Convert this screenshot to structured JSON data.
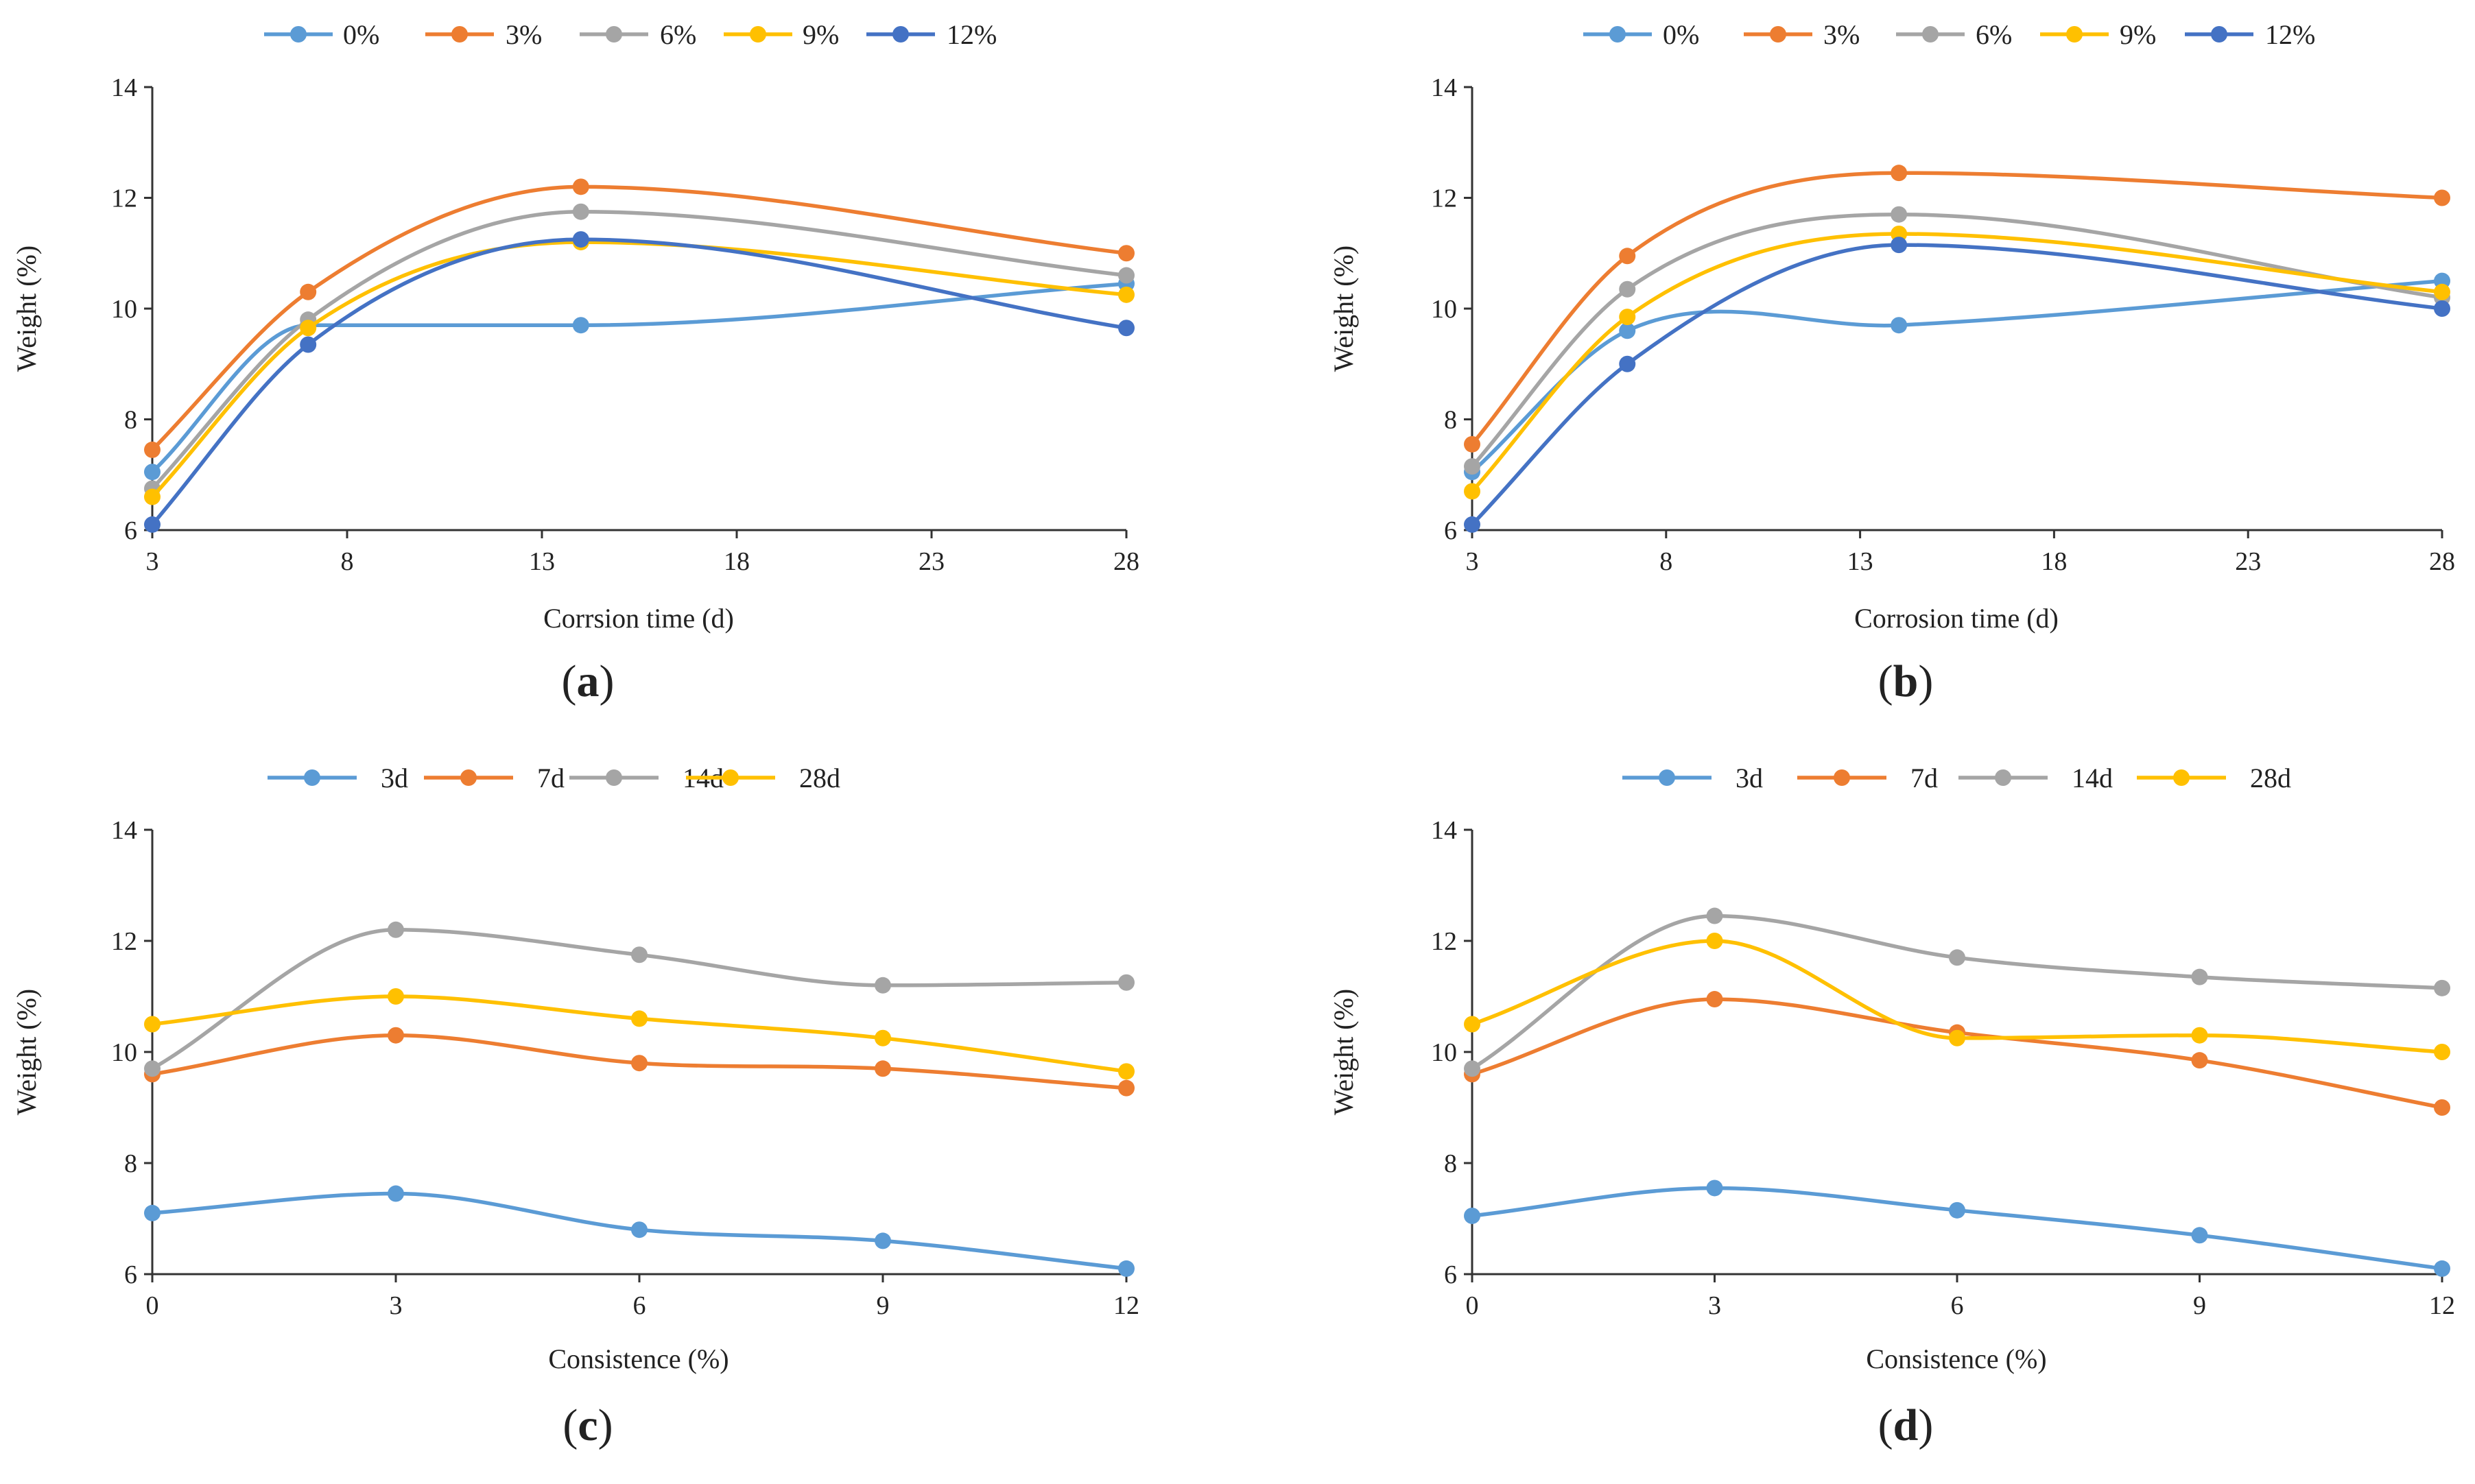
{
  "chart_data": [
    {
      "panel": "a",
      "type": "line",
      "panel_label": {
        "open": "(",
        "letter": "a",
        "close": ")"
      },
      "xlabel": "Corrsion time (d)",
      "ylabel": "Weight (%)",
      "xlim": [
        3,
        28
      ],
      "ylim": [
        6,
        14
      ],
      "xticks": [
        "3",
        "8",
        "13",
        "18",
        "23",
        "28"
      ],
      "yticks": [
        "6",
        "8",
        "10",
        "12",
        "14"
      ],
      "x": [
        3,
        7,
        14,
        28
      ],
      "series": [
        {
          "name": "0%",
          "color": "#5B9BD5",
          "values": [
            7.05,
            9.7,
            9.7,
            10.45
          ]
        },
        {
          "name": "3%",
          "color": "#ED7D31",
          "values": [
            7.45,
            10.3,
            12.2,
            11.0
          ]
        },
        {
          "name": "6%",
          "color": "#A5A5A5",
          "values": [
            6.75,
            9.8,
            11.75,
            10.6
          ]
        },
        {
          "name": "9%",
          "color": "#FFC000",
          "values": [
            6.6,
            9.65,
            11.2,
            10.25
          ]
        },
        {
          "name": "12%",
          "color": "#4472C4",
          "values": [
            6.1,
            9.35,
            11.25,
            9.65
          ]
        }
      ]
    },
    {
      "panel": "b",
      "type": "line",
      "panel_label": {
        "open": "(",
        "letter": "b",
        "close": ")"
      },
      "xlabel": "Corrosion time (d)",
      "ylabel": "Weight (%)",
      "xlim": [
        3,
        28
      ],
      "ylim": [
        6,
        14
      ],
      "xticks": [
        "3",
        "8",
        "13",
        "18",
        "23",
        "28"
      ],
      "yticks": [
        "6",
        "8",
        "10",
        "12",
        "14"
      ],
      "x": [
        3,
        7,
        14,
        28
      ],
      "series": [
        {
          "name": "0%",
          "color": "#5B9BD5",
          "values": [
            7.05,
            9.6,
            9.7,
            10.5
          ]
        },
        {
          "name": "3%",
          "color": "#ED7D31",
          "values": [
            7.55,
            10.95,
            12.45,
            12.0
          ]
        },
        {
          "name": "6%",
          "color": "#A5A5A5",
          "values": [
            7.15,
            10.35,
            11.7,
            10.2
          ]
        },
        {
          "name": "9%",
          "color": "#FFC000",
          "values": [
            6.7,
            9.85,
            11.35,
            10.3
          ]
        },
        {
          "name": "12%",
          "color": "#4472C4",
          "values": [
            6.1,
            9.0,
            11.15,
            10.0
          ]
        }
      ]
    },
    {
      "panel": "c",
      "type": "line",
      "panel_label": {
        "open": "(",
        "letter": "c",
        "close": ")"
      },
      "xlabel": "Consistence (%)",
      "ylabel": "Weight (%)",
      "xlim": [
        0,
        12
      ],
      "ylim": [
        6,
        14
      ],
      "xticks": [
        "0",
        "3",
        "6",
        "9",
        "12"
      ],
      "yticks": [
        "6",
        "8",
        "10",
        "12",
        "14"
      ],
      "x": [
        0,
        3,
        6,
        9,
        12
      ],
      "series": [
        {
          "name": "3d",
          "color": "#5B9BD5",
          "values": [
            7.1,
            7.45,
            6.8,
            6.6,
            6.1
          ]
        },
        {
          "name": "7d",
          "color": "#ED7D31",
          "values": [
            9.6,
            10.3,
            9.8,
            9.7,
            9.35
          ]
        },
        {
          "name": "14d",
          "color": "#A5A5A5",
          "values": [
            9.7,
            12.2,
            11.75,
            11.2,
            11.25
          ]
        },
        {
          "name": "28d",
          "color": "#FFC000",
          "values": [
            10.5,
            11.0,
            10.6,
            10.25,
            9.65
          ]
        }
      ]
    },
    {
      "panel": "d",
      "type": "line",
      "panel_label": {
        "open": "(",
        "letter": "d",
        "close": ")"
      },
      "xlabel": "Consistence (%)",
      "ylabel": "Weight (%)",
      "xlim": [
        0,
        12
      ],
      "ylim": [
        6,
        14
      ],
      "xticks": [
        "0",
        "3",
        "6",
        "9",
        "12"
      ],
      "yticks": [
        "6",
        "8",
        "10",
        "12",
        "14"
      ],
      "x": [
        0,
        3,
        6,
        9,
        12
      ],
      "series": [
        {
          "name": "3d",
          "color": "#5B9BD5",
          "values": [
            7.05,
            7.55,
            7.15,
            6.7,
            6.1
          ]
        },
        {
          "name": "7d",
          "color": "#ED7D31",
          "values": [
            9.6,
            10.95,
            10.35,
            9.85,
            9.0
          ]
        },
        {
          "name": "14d",
          "color": "#A5A5A5",
          "values": [
            9.7,
            12.45,
            11.7,
            11.35,
            11.15
          ]
        },
        {
          "name": "28d",
          "color": "#FFC000",
          "values": [
            10.5,
            12.0,
            10.25,
            10.3,
            10.0
          ]
        }
      ]
    }
  ]
}
